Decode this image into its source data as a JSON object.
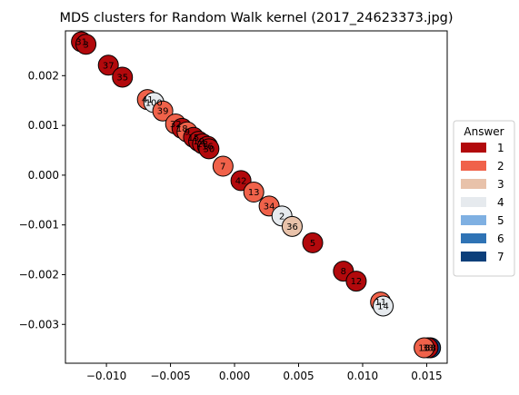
{
  "chart_data": {
    "type": "scatter",
    "title": "MDS clusters for Random Walk kernel (2017_24623373.jpg)",
    "xlabel": "",
    "ylabel": "",
    "xlim": [
      -0.0132,
      0.0166
    ],
    "ylim": [
      -0.00378,
      0.0029
    ],
    "xticks": [
      -0.01,
      -0.005,
      0.0,
      0.005,
      0.01,
      0.015
    ],
    "xtick_labels": [
      "−0.010",
      "−0.005",
      "0.000",
      "0.005",
      "0.010",
      "0.015"
    ],
    "yticks": [
      0.002,
      0.001,
      0.0,
      -0.001,
      -0.002,
      -0.003
    ],
    "ytick_labels": [
      "0.002",
      "0.001",
      "0.000",
      "−0.001",
      "−0.002",
      "−0.003"
    ],
    "grid": false,
    "legend": {
      "title": "Answer",
      "placement": "center-right-outside",
      "entries": [
        {
          "label": "1",
          "color": "#b2090c"
        },
        {
          "label": "2",
          "color": "#f0624a"
        },
        {
          "label": "3",
          "color": "#e8c2aa"
        },
        {
          "label": "4",
          "color": "#e6eaee"
        },
        {
          "label": "5",
          "color": "#7fb0e2"
        },
        {
          "label": "6",
          "color": "#2f73b5"
        },
        {
          "label": "7",
          "color": "#0c3f7a"
        }
      ]
    },
    "points": [
      {
        "label": "31",
        "x": -0.01195,
        "y": 0.00268,
        "answer": 1
      },
      {
        "label": "3",
        "x": -0.0116,
        "y": 0.00263,
        "answer": 1
      },
      {
        "label": "37",
        "x": -0.00985,
        "y": 0.00221,
        "answer": 1
      },
      {
        "label": "35",
        "x": -0.00875,
        "y": 0.00197,
        "answer": 1
      },
      {
        "label": "41",
        "x": -0.0068,
        "y": 0.00152,
        "answer": 2
      },
      {
        "label": "100",
        "x": -0.0063,
        "y": 0.00146,
        "answer": 4
      },
      {
        "label": "39",
        "x": -0.0056,
        "y": 0.00129,
        "answer": 2
      },
      {
        "label": "32",
        "x": -0.0046,
        "y": 0.00103,
        "answer": 2
      },
      {
        "label": "18",
        "x": -0.0041,
        "y": 0.00094,
        "answer": 1
      },
      {
        "label": "9",
        "x": -0.0037,
        "y": 0.00087,
        "answer": 2
      },
      {
        "label": "15",
        "x": -0.0032,
        "y": 0.00076,
        "answer": 1
      },
      {
        "label": "19",
        "x": -0.0028,
        "y": 0.00068,
        "answer": 1
      },
      {
        "label": "28",
        "x": -0.0025,
        "y": 0.00063,
        "answer": 1
      },
      {
        "label": "16",
        "x": -0.0021,
        "y": 0.00058,
        "answer": 1
      },
      {
        "label": "30",
        "x": -0.002,
        "y": 0.00053,
        "answer": 1
      },
      {
        "label": "7",
        "x": -0.0009,
        "y": 0.00018,
        "answer": 2
      },
      {
        "label": "42",
        "x": 0.0005,
        "y": -0.00011,
        "answer": 1
      },
      {
        "label": "13",
        "x": 0.0015,
        "y": -0.00034,
        "answer": 2
      },
      {
        "label": "34",
        "x": 0.0027,
        "y": -0.00062,
        "answer": 2
      },
      {
        "label": "2",
        "x": 0.0037,
        "y": -0.00082,
        "answer": 4
      },
      {
        "label": "36",
        "x": 0.0045,
        "y": -0.00103,
        "answer": 3
      },
      {
        "label": "5",
        "x": 0.0061,
        "y": -0.00136,
        "answer": 1
      },
      {
        "label": "8",
        "x": 0.0085,
        "y": -0.00193,
        "answer": 1
      },
      {
        "label": "12",
        "x": 0.0095,
        "y": -0.00213,
        "answer": 1
      },
      {
        "label": "11",
        "x": 0.0114,
        "y": -0.00255,
        "answer": 2
      },
      {
        "label": "14",
        "x": 0.0116,
        "y": -0.00263,
        "answer": 4
      },
      {
        "label": "38",
        "x": 0.0153,
        "y": -0.00347,
        "answer": 7
      },
      {
        "label": "33",
        "x": 0.0151,
        "y": -0.00347,
        "answer": 1
      },
      {
        "label": "10",
        "x": 0.0148,
        "y": -0.00347,
        "answer": 2
      }
    ]
  }
}
